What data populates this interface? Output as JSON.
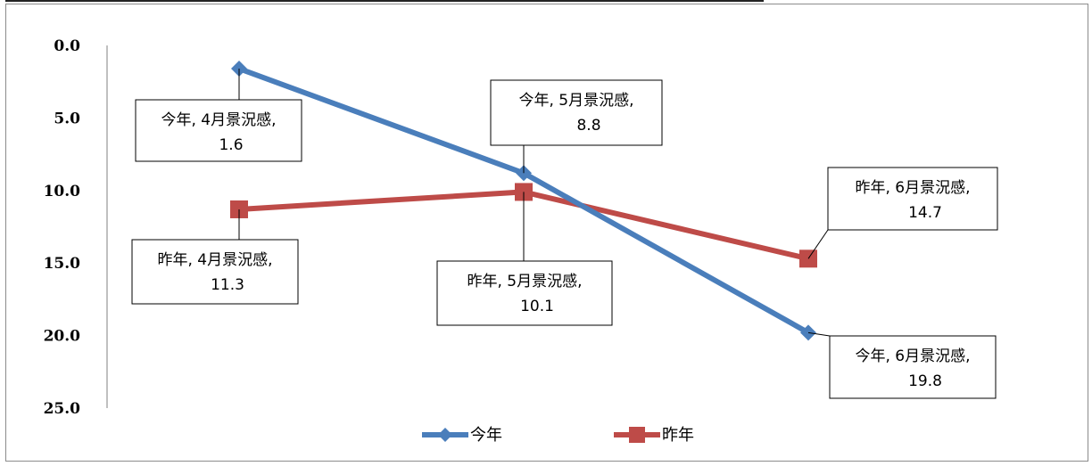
{
  "chart_data": {
    "type": "line",
    "y_reversed": true,
    "ylim": [
      0,
      25
    ],
    "y_ticks": [
      "0.0",
      "5.0",
      "10.0",
      "15.0",
      "20.0",
      "25.0"
    ],
    "categories": [
      "4月景況感",
      "5月景況感",
      "6月景況感"
    ],
    "legend_position": "bottom",
    "grid": false,
    "series": [
      {
        "name": "今年",
        "color": "#4a7ebb",
        "marker": "diamond",
        "values": [
          1.6,
          8.8,
          19.8
        ],
        "labels": [
          {
            "line1": "今年, 4月景況感,",
            "line2": "1.6"
          },
          {
            "line1": "今年, 5月景況感,",
            "line2": "8.8"
          },
          {
            "line1": "今年, 6月景況感,",
            "line2": "19.8"
          }
        ]
      },
      {
        "name": "昨年",
        "color": "#be4b48",
        "marker": "square",
        "values": [
          11.3,
          10.1,
          14.7
        ],
        "labels": [
          {
            "line1": "昨年, 4月景況感,",
            "line2": "11.3"
          },
          {
            "line1": "昨年, 5月景況感,",
            "line2": "10.1"
          },
          {
            "line1": "昨年, 6月景況感,",
            "line2": "14.7"
          }
        ]
      }
    ]
  }
}
